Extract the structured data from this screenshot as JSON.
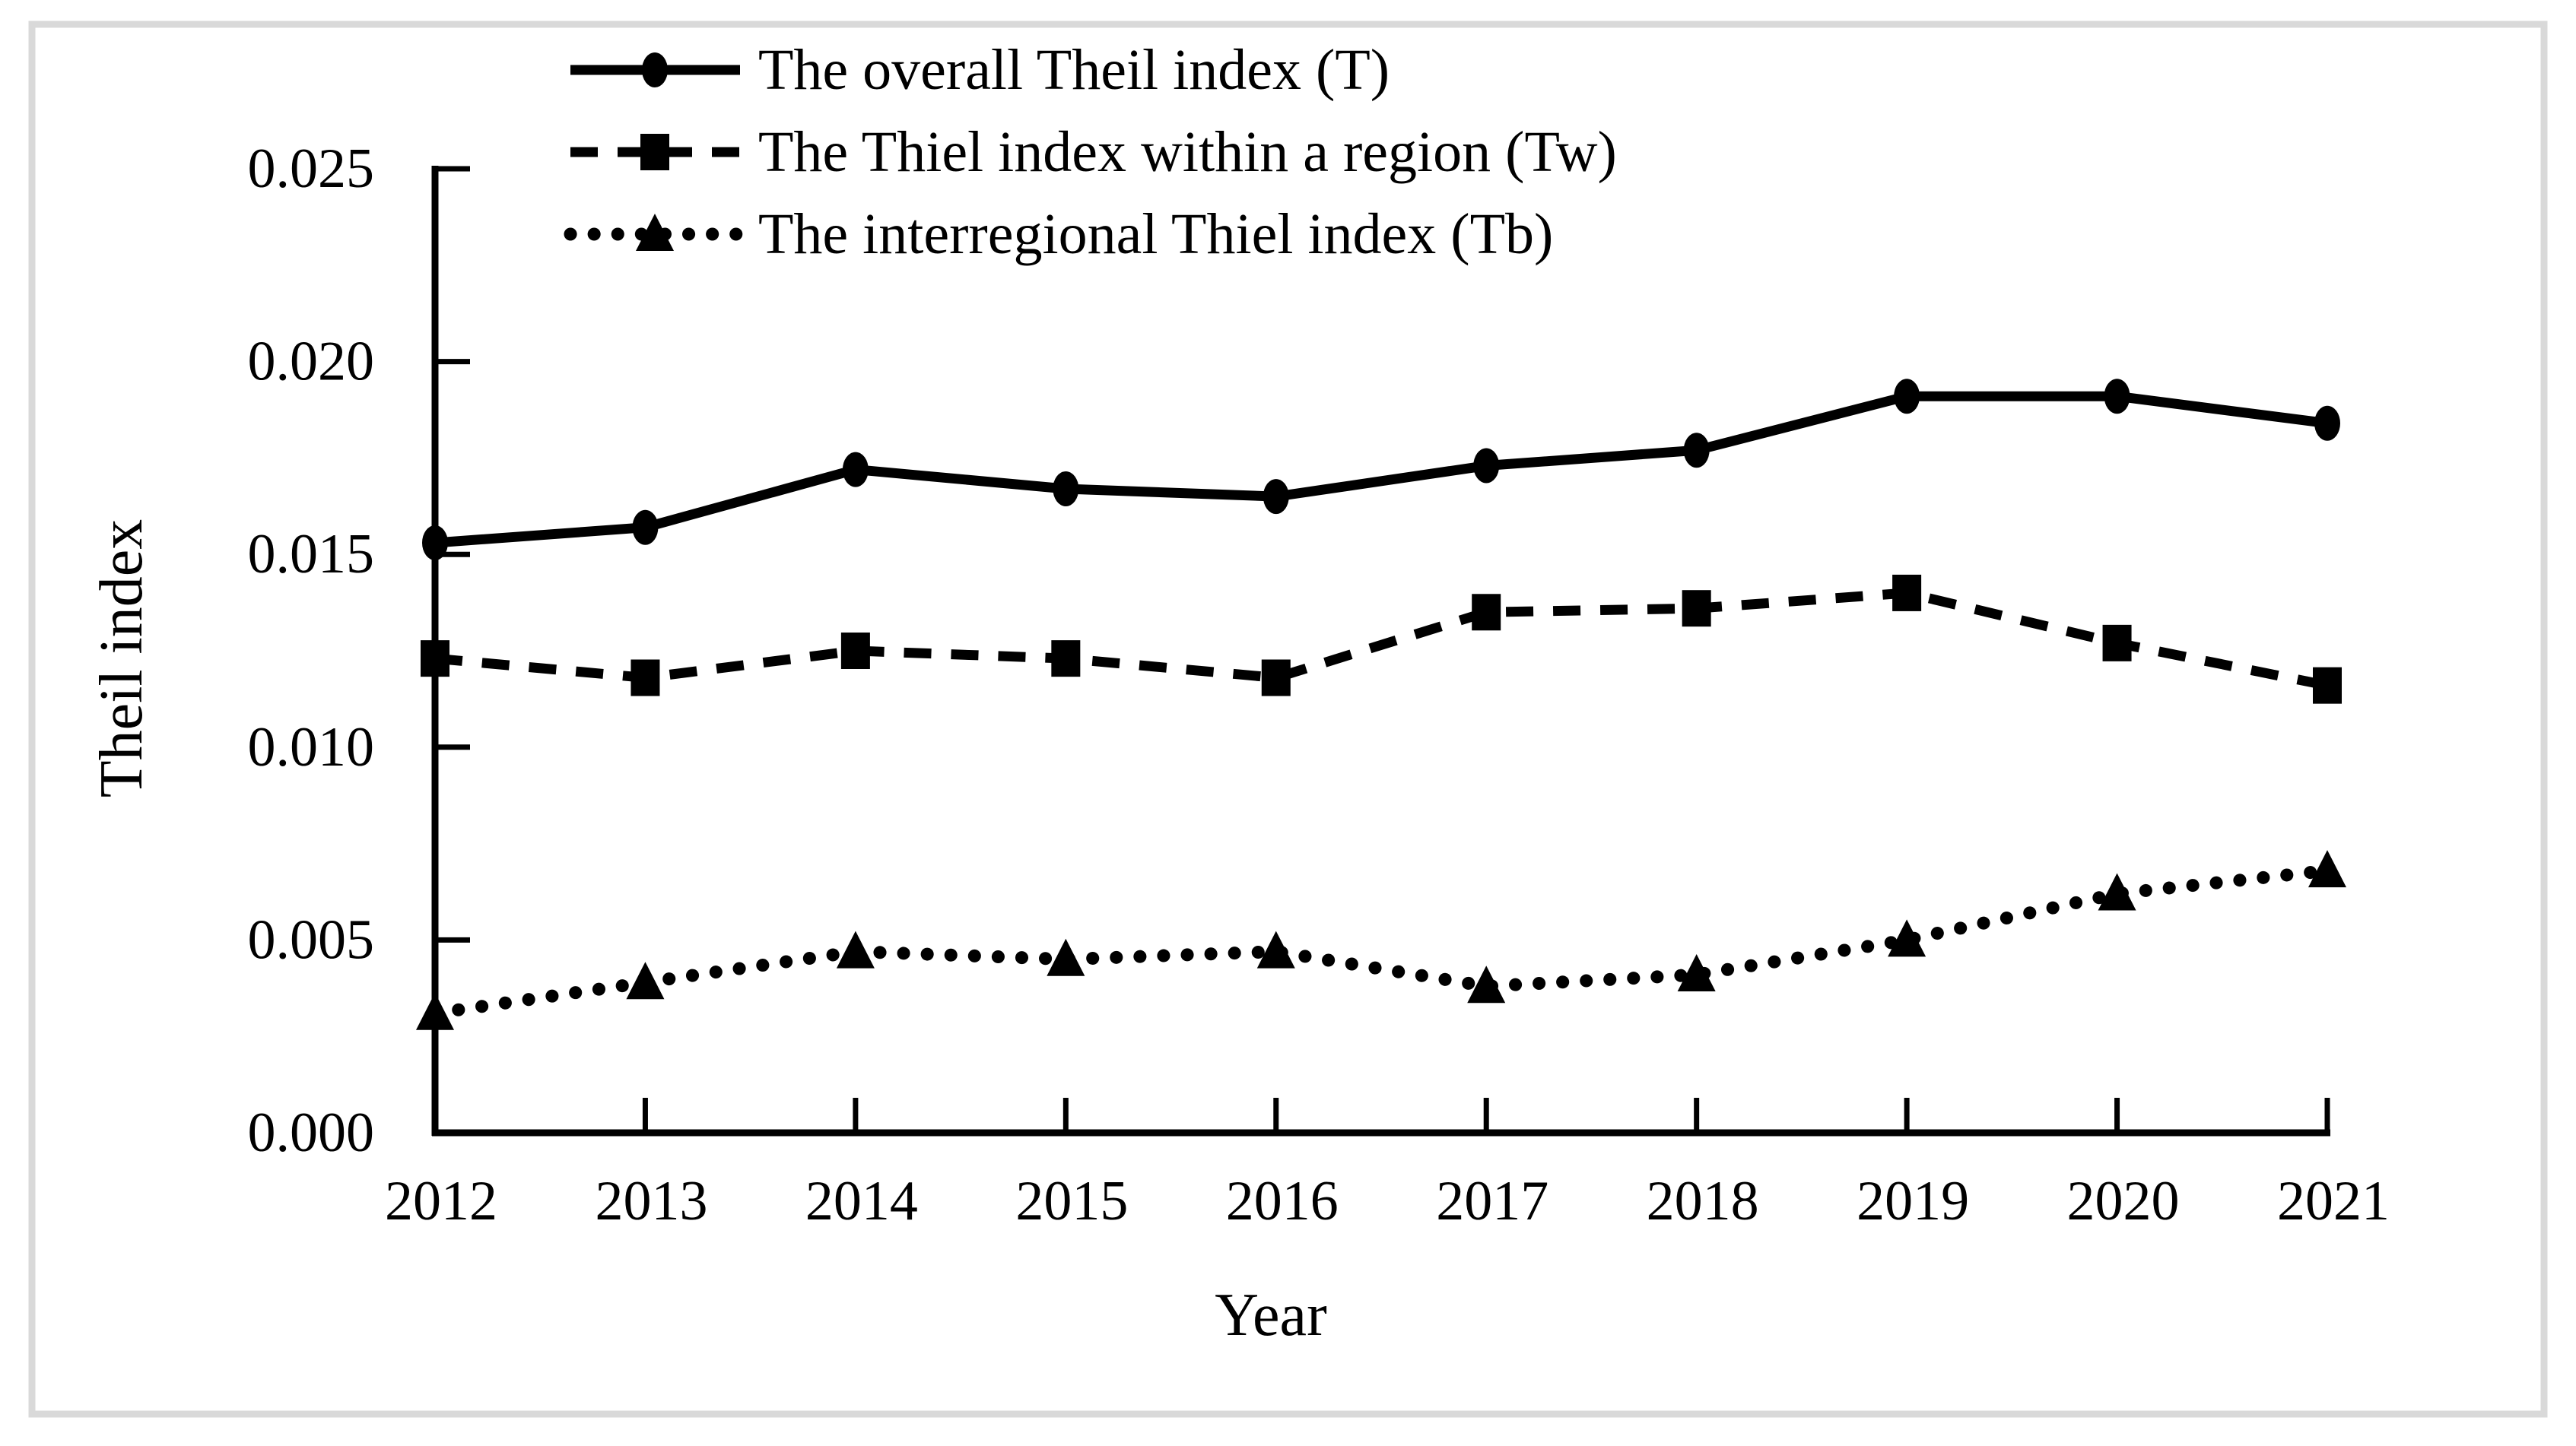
{
  "figure": {
    "background_color": "#ffffff",
    "border_color": "#d9d9d9",
    "series_color": "#000000"
  },
  "chart_data": {
    "type": "line",
    "title": "",
    "xlabel": "Year",
    "ylabel": "Theil index",
    "x": [
      2012,
      2013,
      2014,
      2015,
      2016,
      2017,
      2018,
      2019,
      2020,
      2021
    ],
    "ylim": [
      0,
      0.025
    ],
    "y_tick_step": 0.005,
    "y_tick_labels": [
      "0.000",
      "0.005",
      "0.010",
      "0.015",
      "0.020",
      "0.025"
    ],
    "grid": false,
    "legend_position": "top-inside-left",
    "series": [
      {
        "name": "The overall Theil index (T)",
        "marker": "circle",
        "line": "solid",
        "color": "#000000",
        "values": [
          0.0153,
          0.0157,
          0.0172,
          0.0167,
          0.0165,
          0.0173,
          0.0177,
          0.0191,
          0.0191,
          0.0184
        ]
      },
      {
        "name": "The Thiel index within a region (Tw)",
        "marker": "square",
        "line": "dashed",
        "color": "#000000",
        "values": [
          0.0123,
          0.0118,
          0.0125,
          0.0123,
          0.0118,
          0.0135,
          0.0136,
          0.014,
          0.0127,
          0.0116
        ]
      },
      {
        "name": "The interregional Thiel index (Tb)",
        "marker": "triangle",
        "line": "dotted",
        "color": "#000000",
        "values": [
          0.0031,
          0.0039,
          0.0047,
          0.0045,
          0.0047,
          0.0038,
          0.0041,
          0.005,
          0.0062,
          0.0068
        ]
      }
    ]
  }
}
